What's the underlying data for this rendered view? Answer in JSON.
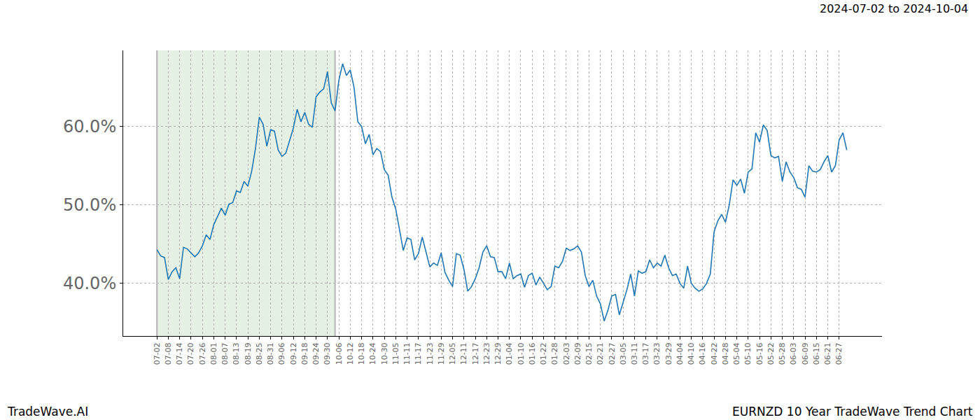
{
  "chart_data": {
    "type": "line",
    "title": "2024-07-02 to 2024-10-04",
    "annotations": [
      "TradeWave.AI",
      "EURNZD 10 Year TradeWave Trend Chart"
    ],
    "categories": [
      "07-02",
      null,
      null,
      "07-08",
      null,
      null,
      "07-14",
      null,
      null,
      "07-20",
      null,
      null,
      "07-26",
      null,
      null,
      "08-01",
      null,
      null,
      "08-07",
      null,
      null,
      "08-13",
      null,
      null,
      "08-19",
      null,
      null,
      "08-25",
      null,
      null,
      "08-31",
      null,
      null,
      "09-06",
      null,
      null,
      "09-12",
      null,
      null,
      "09-18",
      null,
      null,
      "09-24",
      null,
      null,
      "09-30",
      null,
      null,
      "10-06",
      null,
      null,
      "10-12",
      null,
      null,
      "10-18",
      null,
      null,
      "10-24",
      null,
      null,
      "10-30",
      null,
      null,
      "11-05",
      null,
      null,
      "11-11",
      null,
      null,
      "11-17",
      null,
      null,
      "11-23",
      null,
      null,
      "11-29",
      null,
      null,
      "12-05",
      null,
      null,
      "12-11",
      null,
      null,
      "12-17",
      null,
      null,
      "12-23",
      null,
      null,
      "12-29",
      null,
      null,
      "01-04",
      null,
      null,
      "01-10",
      null,
      null,
      "01-16",
      null,
      null,
      "01-22",
      null,
      null,
      "01-28",
      null,
      null,
      "02-03",
      null,
      null,
      "02-09",
      null,
      null,
      "02-15",
      null,
      null,
      "02-21",
      null,
      null,
      "02-27",
      null,
      null,
      "03-05",
      null,
      null,
      "03-11",
      null,
      null,
      "03-17",
      null,
      null,
      "03-23",
      null,
      null,
      "03-29",
      null,
      null,
      "04-04",
      null,
      null,
      "04-10",
      null,
      null,
      "04-16",
      null,
      null,
      "04-22",
      null,
      null,
      "04-28",
      null,
      null,
      "05-04",
      null,
      null,
      "05-10",
      null,
      null,
      "05-16",
      null,
      null,
      "05-22",
      null,
      null,
      "05-28",
      null,
      null,
      "06-03",
      null,
      null,
      "06-09",
      null,
      null,
      "06-15",
      null,
      null,
      "06-21",
      null,
      null,
      "06-27",
      null,
      null
    ],
    "values": [
      44.3,
      43.5,
      43.3,
      40.5,
      41.5,
      42.0,
      40.6,
      44.6,
      44.4,
      43.9,
      43.4,
      43.9,
      44.8,
      46.2,
      45.6,
      47.5,
      48.6,
      49.6,
      48.7,
      50.1,
      50.3,
      51.8,
      51.6,
      53.0,
      52.4,
      54.3,
      57.2,
      61.2,
      60.3,
      57.5,
      59.6,
      59.4,
      57.0,
      56.2,
      56.6,
      58.3,
      59.8,
      62.2,
      60.6,
      61.8,
      60.3,
      59.9,
      63.8,
      64.4,
      64.8,
      67.0,
      63.0,
      62.0,
      65.9,
      68.0,
      66.5,
      67.2,
      65.0,
      60.6,
      60.0,
      57.8,
      59.0,
      56.4,
      57.2,
      56.8,
      54.5,
      53.8,
      51.0,
      49.5,
      47.0,
      44.2,
      45.8,
      45.6,
      43.0,
      43.8,
      45.9,
      44.0,
      42.1,
      42.6,
      42.3,
      43.9,
      41.4,
      40.4,
      39.6,
      43.8,
      43.6,
      41.8,
      39.0,
      39.6,
      40.6,
      42.0,
      44.0,
      44.8,
      43.4,
      43.3,
      41.5,
      41.5,
      40.6,
      42.6,
      40.6,
      41.0,
      41.2,
      39.5,
      41.0,
      41.3,
      39.8,
      40.8,
      40.0,
      39.2,
      39.6,
      42.2,
      42.0,
      42.8,
      44.5,
      44.2,
      44.4,
      44.8,
      44.0,
      41.0,
      39.6,
      40.4,
      38.4,
      37.4,
      35.2,
      36.6,
      38.4,
      38.6,
      36.0,
      37.6,
      39.2,
      41.2,
      38.4,
      41.6,
      41.3,
      41.5,
      43.0,
      42.0,
      42.6,
      42.2,
      43.6,
      42.0,
      41.0,
      41.2,
      40.0,
      39.4,
      42.2,
      40.0,
      39.4,
      39.0,
      39.3,
      40.0,
      41.2,
      46.6,
      48.0,
      48.8,
      47.8,
      50.0,
      53.2,
      52.5,
      53.3,
      51.5,
      54.2,
      54.6,
      59.2,
      58.0,
      60.2,
      59.5,
      56.3,
      56.0,
      56.2,
      53.0,
      55.5,
      54.2,
      53.5,
      52.2,
      52.0,
      51.0,
      55.0,
      54.3,
      54.2,
      54.5,
      55.5,
      56.3,
      54.2,
      55.0,
      58.3,
      59.2,
      57.0
    ],
    "color": "#1f77b4",
    "shade": {
      "from": 0,
      "to": 47
    },
    "xlim": [
      -8.9,
      191.3
    ],
    "ylim": [
      33.3,
      69.7
    ],
    "yticks": [
      {
        "value": 40,
        "label": "40.0%"
      },
      {
        "value": 50,
        "label": "50.0%"
      },
      {
        "value": 60,
        "label": "60.0%"
      }
    ],
    "grid": true
  }
}
